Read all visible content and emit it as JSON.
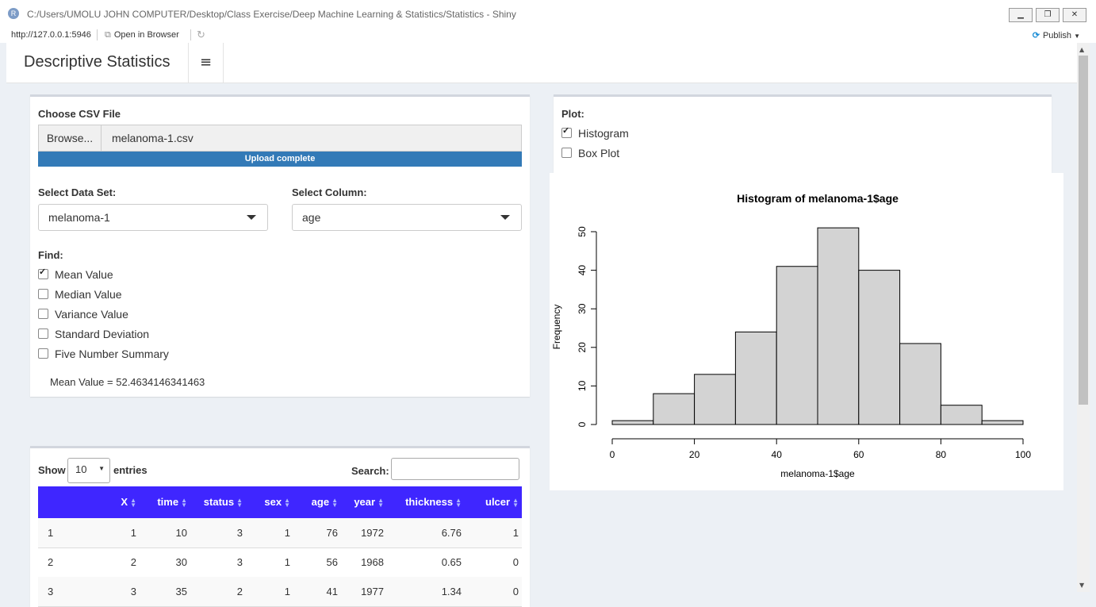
{
  "window": {
    "title": "C:/Users/UMOLU JOHN COMPUTER/Desktop/Class Exercise/Deep Machine Learning & Statistics/Statistics - Shiny",
    "app_icon": "R"
  },
  "toolbar": {
    "url": "http://127.0.0.1:5946",
    "open_in_browser": "Open in Browser",
    "publish": "Publish"
  },
  "header": {
    "brand": "Descriptive Statistics",
    "toggle_icon": "≡"
  },
  "upload": {
    "label": "Choose CSV File",
    "browse": "Browse...",
    "filename": "melanoma-1.csv",
    "progress_text": "Upload complete",
    "progress_value": 1.0
  },
  "dataset": {
    "label": "Select Data Set:",
    "value": "melanoma-1"
  },
  "column": {
    "label": "Select Column:",
    "value": "age"
  },
  "find": {
    "label": "Find:",
    "options": [
      {
        "label": "Mean Value",
        "checked": true
      },
      {
        "label": "Median Value",
        "checked": false
      },
      {
        "label": "Variance Value",
        "checked": false
      },
      {
        "label": "Standard Deviation",
        "checked": false
      },
      {
        "label": "Five Number Summary",
        "checked": false
      }
    ],
    "result": "Mean Value = 52.4634146341463"
  },
  "plot_options": {
    "label": "Plot:",
    "options": [
      {
        "label": "Histogram",
        "checked": true
      },
      {
        "label": "Box Plot",
        "checked": false
      }
    ]
  },
  "table": {
    "show_label": "Show",
    "entries_value": "10",
    "entries_label": "entries",
    "search_label": "Search:",
    "columns": [
      "",
      "X",
      "time",
      "status",
      "sex",
      "age",
      "year",
      "thickness",
      "ulcer"
    ],
    "rows": [
      [
        "1",
        "1",
        "10",
        "3",
        "1",
        "76",
        "1972",
        "6.76",
        "1"
      ],
      [
        "2",
        "2",
        "30",
        "3",
        "1",
        "56",
        "1968",
        "0.65",
        "0"
      ],
      [
        "3",
        "3",
        "35",
        "2",
        "1",
        "41",
        "1977",
        "1.34",
        "0"
      ]
    ]
  },
  "chart_data": {
    "type": "bar",
    "title": "Histogram of melanoma-1$age",
    "xlabel": "melanoma-1$age",
    "ylabel": "Frequency",
    "bins": [
      [
        0,
        10
      ],
      [
        10,
        20
      ],
      [
        20,
        30
      ],
      [
        30,
        40
      ],
      [
        40,
        50
      ],
      [
        50,
        60
      ],
      [
        60,
        70
      ],
      [
        70,
        80
      ],
      [
        80,
        90
      ],
      [
        90,
        100
      ]
    ],
    "values": [
      1,
      8,
      13,
      24,
      41,
      51,
      40,
      21,
      5,
      1
    ],
    "xlim": [
      0,
      100
    ],
    "ylim": [
      0,
      50
    ],
    "xticks": [
      "0",
      "20",
      "40",
      "60",
      "80",
      "100"
    ],
    "yticks": [
      "0",
      "10",
      "20",
      "30",
      "40",
      "50"
    ],
    "bar_color": "#d3d3d3",
    "grid": false
  }
}
